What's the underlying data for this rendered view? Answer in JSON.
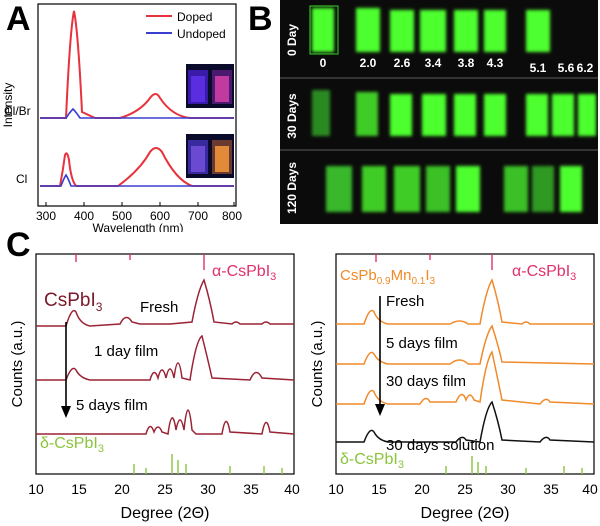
{
  "panel_a": {
    "label": "A",
    "legend": [
      {
        "name": "Doped",
        "color": "#e8323c"
      },
      {
        "name": "Undoped",
        "color": "#3a3fd0"
      }
    ],
    "ylabel": "Intensity",
    "xlabel": "Wavelength (nm)",
    "xticks": [
      "300",
      "400",
      "500",
      "600",
      "700",
      "800"
    ],
    "sample_labels": [
      "Cl/Br",
      "Cl"
    ]
  },
  "panel_b": {
    "label": "B",
    "rows": [
      "0 Day",
      "30 Days",
      "120 Days"
    ],
    "concentrations": [
      "0",
      "2.0",
      "2.6",
      "3.4",
      "3.8",
      "4.3",
      "5.1",
      "5.6",
      "6.2"
    ],
    "glow_color": "#4dff2e"
  },
  "panel_c": {
    "label": "C",
    "xlabel": "Degree (2Θ)",
    "ylabel": "Counts (a.u.)",
    "xticks": [
      "10",
      "15",
      "20",
      "25",
      "30",
      "35",
      "40"
    ],
    "left": {
      "compound": "CsPbI",
      "compound_sub": "3",
      "alpha_label": "α-CsPbI",
      "alpha_sub": "3",
      "delta_label": "δ-CsPbI",
      "delta_sub": "3",
      "traces": [
        "Fresh",
        "1 day film",
        "5 days film"
      ],
      "trace_color": "#9b2335"
    },
    "right": {
      "compound_parts": [
        "CsPb",
        "0.9",
        "Mn",
        "0.1",
        "I",
        "3"
      ],
      "alpha_label": "α-CsPbI",
      "alpha_sub": "3",
      "delta_label": "δ-CsPbI",
      "delta_sub": "3",
      "traces": [
        "Fresh",
        "5 days film",
        "30 days film",
        "30 days solution"
      ],
      "trace_color": "#f08a2a",
      "solution_color": "#111111"
    },
    "alpha_color": "#e0306a",
    "delta_color": "#8ac43c"
  }
}
